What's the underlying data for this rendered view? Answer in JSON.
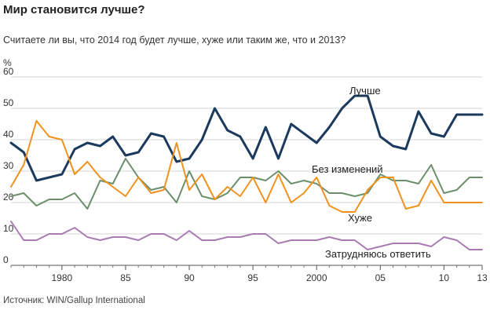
{
  "title": "Мир становится лучше?",
  "subtitle": "Считаете ли вы, что 2014 год будет лучше, хуже или таким же, что и 2013?",
  "source": "Источник: WIN/Gallup International",
  "chart_data": {
    "type": "line",
    "ylabel": "%",
    "ylim": [
      0,
      60
    ],
    "yticks": [
      0,
      10,
      20,
      30,
      40,
      50,
      60
    ],
    "xlim": [
      1976,
      2013
    ],
    "xticks": [
      {
        "value": 1980,
        "label": "1980"
      },
      {
        "value": 1985,
        "label": "85"
      },
      {
        "value": 1990,
        "label": "90"
      },
      {
        "value": 1995,
        "label": "95"
      },
      {
        "value": 2000,
        "label": "2000"
      },
      {
        "value": 2005,
        "label": "05"
      },
      {
        "value": 2010,
        "label": "10"
      },
      {
        "value": 2013,
        "label": "13"
      }
    ],
    "grid": true,
    "x": [
      1976,
      1977,
      1978,
      1979,
      1980,
      1981,
      1982,
      1983,
      1984,
      1985,
      1986,
      1987,
      1988,
      1989,
      1990,
      1991,
      1992,
      1993,
      1994,
      1995,
      1996,
      1997,
      1998,
      1999,
      2000,
      2001,
      2002,
      2003,
      2004,
      2005,
      2006,
      2007,
      2008,
      2009,
      2010,
      2011,
      2012,
      2013
    ],
    "series": [
      {
        "name": "Лучше",
        "color": "#1c3a5e",
        "width": 3,
        "values": [
          39,
          36,
          27,
          28,
          29,
          37,
          39,
          38,
          41,
          35,
          36,
          42,
          41,
          33,
          34,
          40,
          50,
          43,
          41,
          34,
          44,
          34,
          45,
          42,
          39,
          44,
          50,
          54,
          54,
          41,
          38,
          37,
          49,
          42,
          41,
          48,
          48,
          48
        ]
      },
      {
        "name": "Без изменений",
        "color": "#6b8f6b",
        "width": 2,
        "values": [
          22,
          23,
          19,
          21,
          21,
          23,
          18,
          27,
          26,
          34,
          28,
          24,
          25,
          20,
          30,
          22,
          21,
          23,
          28,
          28,
          27,
          30,
          26,
          27,
          26,
          23,
          23,
          22,
          23,
          29,
          27,
          27,
          26,
          32,
          23,
          24,
          28,
          28
        ]
      },
      {
        "name": "Хуже",
        "color": "#f0921e",
        "width": 2,
        "values": [
          25,
          32,
          46,
          41,
          40,
          29,
          33,
          28,
          25,
          22,
          28,
          23,
          24,
          39,
          24,
          29,
          21,
          25,
          22,
          28,
          20,
          29,
          20,
          23,
          28,
          19,
          17,
          17,
          24,
          28,
          28,
          18,
          19,
          27,
          20,
          20,
          20,
          20
        ]
      },
      {
        "name": "Затрудняюсь ответить",
        "color": "#a87cb0",
        "width": 2,
        "values": [
          14,
          8,
          8,
          10,
          10,
          12,
          9,
          8,
          9,
          9,
          8,
          10,
          10,
          8,
          11,
          8,
          8,
          9,
          9,
          10,
          10,
          7,
          8,
          8,
          8,
          9,
          8,
          8,
          5,
          6,
          7,
          7,
          7,
          6,
          9,
          8,
          5,
          5
        ]
      }
    ]
  }
}
